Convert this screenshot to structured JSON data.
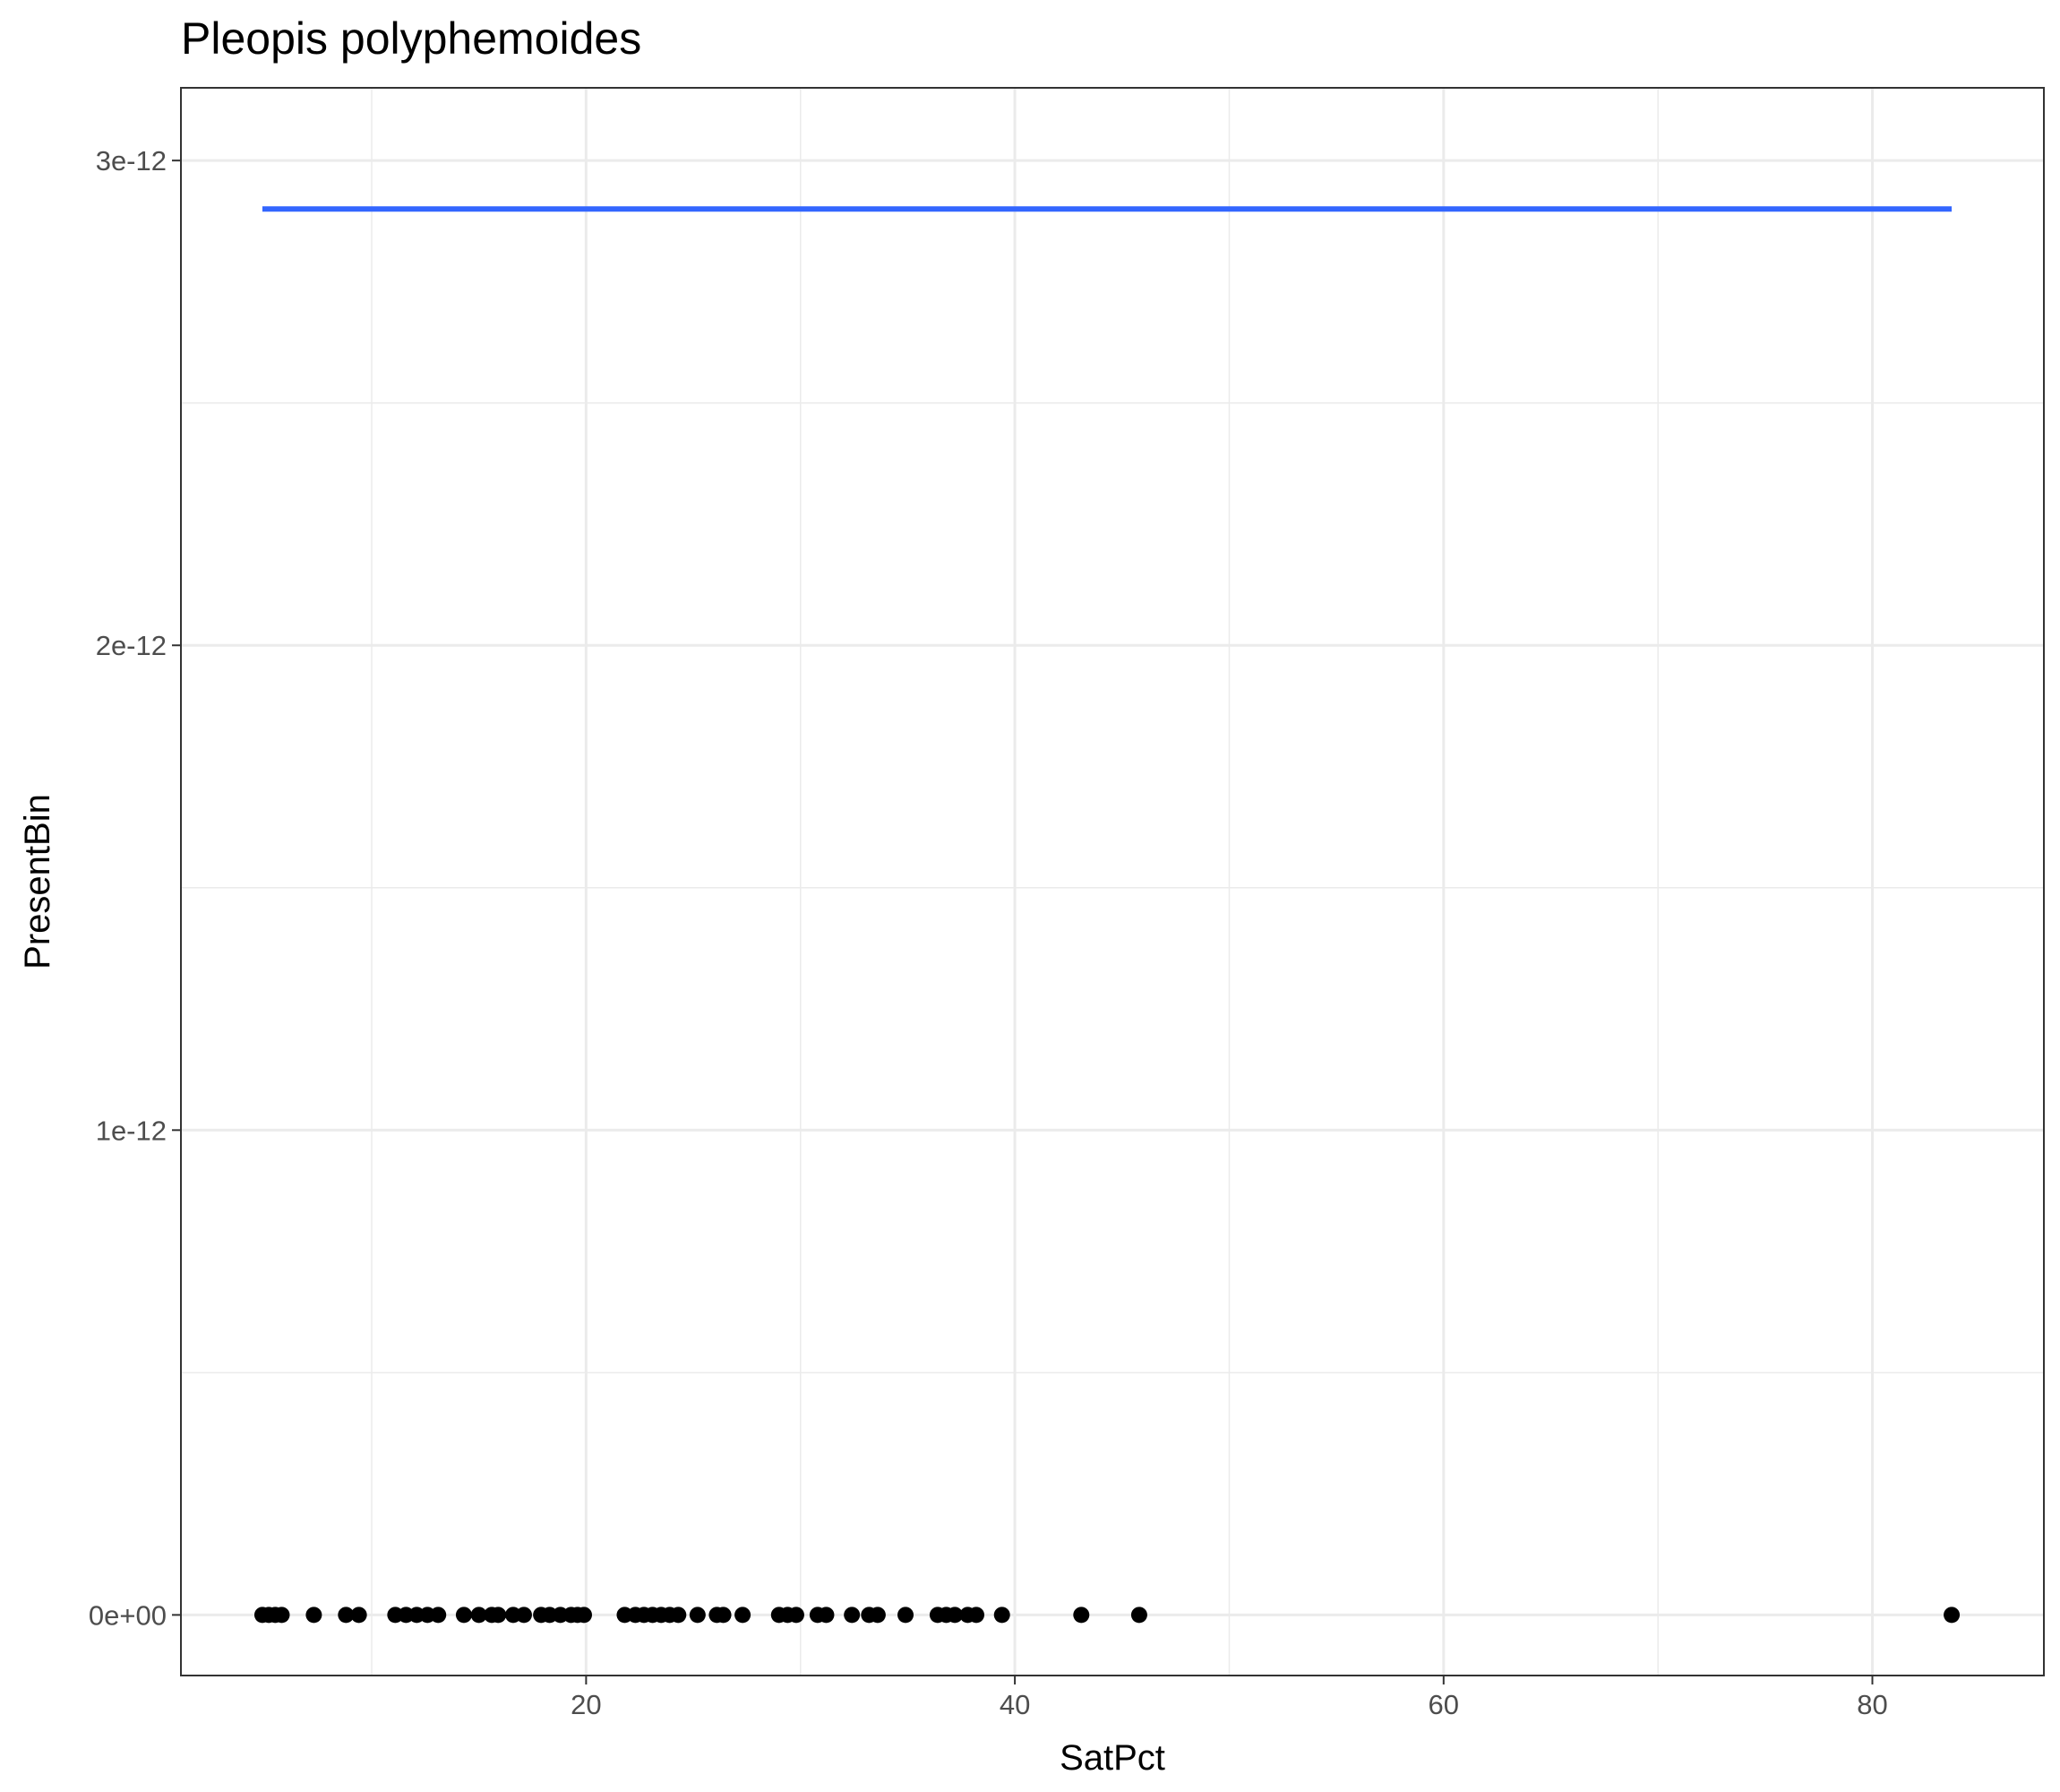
{
  "chart_data": {
    "type": "scatter",
    "title": "Pleopis polyphemoides",
    "xlabel": "SatPct",
    "ylabel": "PresentBin",
    "xlim": [
      1.1,
      88.0
    ],
    "ylim": [
      -1.25e-13,
      3.15e-12
    ],
    "x_ticks": [
      20,
      40,
      60,
      80
    ],
    "x_tick_labels": [
      "20",
      "40",
      "60",
      "80"
    ],
    "y_ticks": [
      0,
      1e-12,
      2e-12,
      3e-12
    ],
    "y_tick_labels": [
      "0e+00",
      "1e-12",
      "2e-12",
      "3e-12"
    ],
    "grid": true,
    "points": {
      "x": [
        4.9,
        5.2,
        5.5,
        5.8,
        7.3,
        8.8,
        9.4,
        11.1,
        11.6,
        12.1,
        12.6,
        13.1,
        14.3,
        15.0,
        15.6,
        15.9,
        16.6,
        17.1,
        17.9,
        18.3,
        18.8,
        19.3,
        19.6,
        19.9,
        21.8,
        22.3,
        22.7,
        23.1,
        23.5,
        23.9,
        24.3,
        25.2,
        26.1,
        26.4,
        27.3,
        29.0,
        29.4,
        29.8,
        30.8,
        31.2,
        32.4,
        33.2,
        33.6,
        34.9,
        36.4,
        36.8,
        37.2,
        37.8,
        38.2,
        39.4,
        43.1,
        45.8,
        83.7
      ],
      "y": [
        0,
        0,
        0,
        0,
        0,
        0,
        0,
        0,
        0,
        0,
        0,
        0,
        0,
        0,
        0,
        0,
        0,
        0,
        0,
        0,
        0,
        0,
        0,
        0,
        0,
        0,
        0,
        0,
        0,
        0,
        0,
        0,
        0,
        0,
        0,
        0,
        0,
        0,
        0,
        0,
        0,
        0,
        0,
        0,
        0,
        0,
        0,
        0,
        0,
        0,
        0,
        0,
        0
      ],
      "color": "#000000"
    },
    "fit_line": {
      "x": [
        4.9,
        83.7
      ],
      "y": [
        2.9e-12,
        2.9e-12
      ],
      "color": "#3366ff"
    }
  }
}
